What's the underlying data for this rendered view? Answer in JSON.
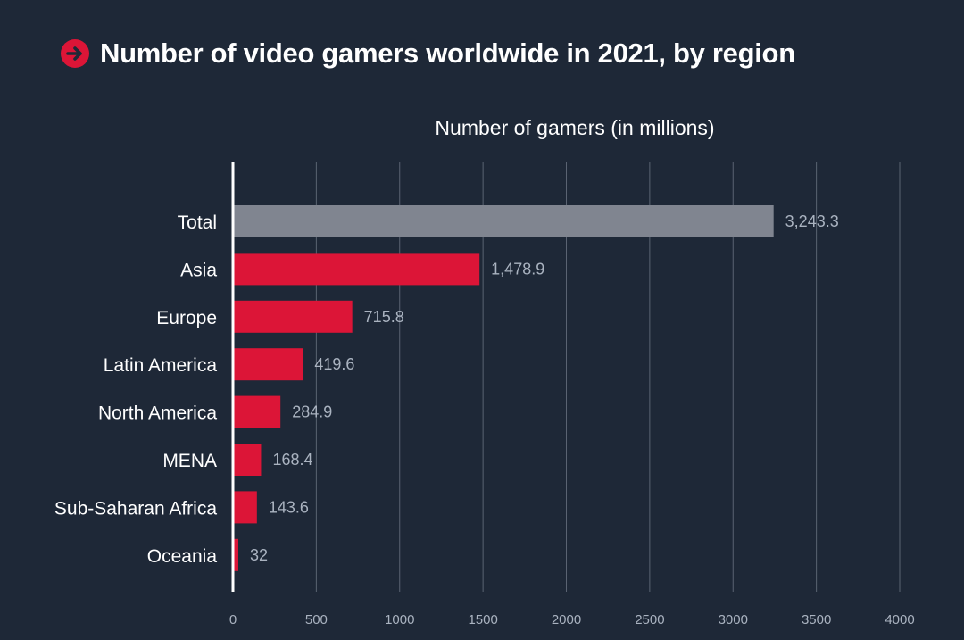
{
  "header": {
    "title": "Number of video gamers worldwide in 2021, by region",
    "icon": "arrow-right-circle-icon",
    "icon_color": "#dc1537"
  },
  "chart_data": {
    "type": "bar",
    "orientation": "horizontal",
    "title": "Number of video gamers worldwide in 2021, by region",
    "xlabel": "Number of gamers (in millions)",
    "ylabel": "",
    "categories": [
      "Total",
      "Asia",
      "Europe",
      "Latin America",
      "North America",
      "MENA",
      "Sub-Saharan Africa",
      "Oceania"
    ],
    "values": [
      3243.3,
      1478.9,
      715.8,
      419.6,
      284.9,
      168.4,
      143.6,
      32
    ],
    "value_labels": [
      "3,243.3",
      "1,478.9",
      "715.8",
      "419.6",
      "284.9",
      "168.4",
      "143.6",
      "32"
    ],
    "bar_colors": [
      "#808590",
      "#dc1537",
      "#dc1537",
      "#dc1537",
      "#dc1537",
      "#dc1537",
      "#dc1537",
      "#dc1537"
    ],
    "xlim": [
      0,
      4000
    ],
    "xticks": [
      "0",
      "500",
      "1000",
      "1500",
      "2000",
      "2500",
      "3000",
      "3500",
      "4000"
    ],
    "grid": true,
    "legend": "none"
  }
}
